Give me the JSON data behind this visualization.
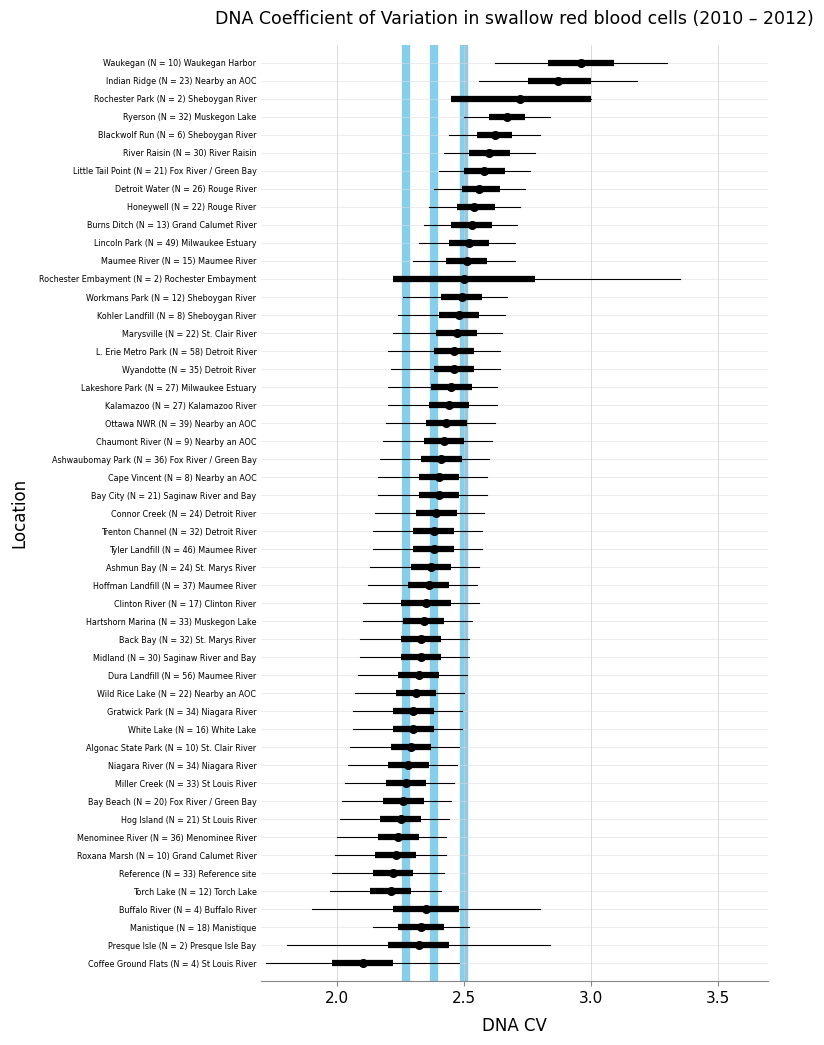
{
  "title": "DNA Coefficient of Variation in swallow red blood cells (2010 – 2012)",
  "xlabel": "DNA CV",
  "ylabel": "Location",
  "xlim": [
    1.7,
    3.7
  ],
  "xticks": [
    2.0,
    2.5,
    3.0,
    3.5
  ],
  "vlines": [
    2.27,
    2.38,
    2.5
  ],
  "vline_color": "#87CEEB",
  "vline_lw": 6,
  "bg_color": "#ffffff",
  "fig_bg": "#ffffff",
  "locations": [
    "Waukegan (N = 10) Waukegan Harbor",
    "Indian Ridge (N = 23) Nearby an AOC",
    "Rochester Park (N = 2) Sheboygan River",
    "Ryerson (N = 32) Muskegon Lake",
    "Blackwolf Run (N = 6) Sheboygan River",
    "River Raisin (N = 30) River Raisin",
    "Little Tail Point (N = 21) Fox River / Green Bay",
    "Detroit Water (N = 26) Rouge River",
    "Honeywell (N = 22) Rouge River",
    "Burns Ditch (N = 13) Grand Calumet River",
    "Lincoln Park (N = 49) Milwaukee Estuary",
    "Maumee River (N = 15) Maumee River",
    "Rochester Embayment (N = 2) Rochester Embayment",
    "Workmans Park (N = 12) Sheboygan River",
    "Kohler Landfill (N = 8) Sheboygan River",
    "Marysville (N = 22) St. Clair River",
    "L. Erie Metro Park (N = 58) Detroit River",
    "Wyandotte (N = 35) Detroit River",
    "Lakeshore Park (N = 27) Milwaukee Estuary",
    "Kalamazoo (N = 27) Kalamazoo River",
    "Ottawa NWR (N = 39) Nearby an AOC",
    "Chaumont River (N = 9) Nearby an AOC",
    "Ashwaubomay Park (N = 36) Fox River / Green Bay",
    "Cape Vincent (N = 8) Nearby an AOC",
    "Bay City (N = 21) Saginaw River and Bay",
    "Connor Creek (N = 24) Detroit River",
    "Trenton Channel (N = 32) Detroit River",
    "Tyler Landfill (N = 46) Maumee River",
    "Ashmun Bay (N = 24) St. Marys River",
    "Hoffman Landfill (N = 37) Maumee River",
    "Clinton River (N = 17) Clinton River",
    "Hartshorn Marina (N = 33) Muskegon Lake",
    "Back Bay (N = 32) St. Marys River",
    "Midland (N = 30) Saginaw River and Bay",
    "Dura Landfill (N = 56) Maumee River",
    "Wild Rice Lake (N = 22) Nearby an AOC",
    "Gratwick Park (N = 34) Niagara River",
    "White Lake (N = 16) White Lake",
    "Algonac State Park (N = 10) St. Clair River",
    "Niagara River (N = 34) Niagara River",
    "Miller Creek (N = 33) St Louis River",
    "Bay Beach (N = 20) Fox River / Green Bay",
    "Hog Island (N = 21) St Louis River",
    "Menominee River (N = 36) Menominee River",
    "Roxana Marsh (N = 10) Grand Calumet River",
    "Reference (N = 33) Reference site",
    "Torch Lake (N = 12) Torch Lake",
    "Buffalo River (N = 4) Buffalo River",
    "Manistique (N = 18) Manistique",
    "Presque Isle (N = 2) Presque Isle Bay",
    "Coffee Ground Flats (N = 4) St Louis River"
  ],
  "median": [
    2.96,
    2.87,
    2.72,
    2.67,
    2.62,
    2.6,
    2.58,
    2.56,
    2.54,
    2.53,
    2.52,
    2.51,
    2.5,
    2.49,
    2.48,
    2.47,
    2.46,
    2.46,
    2.45,
    2.44,
    2.43,
    2.42,
    2.41,
    2.4,
    2.4,
    2.39,
    2.38,
    2.38,
    2.37,
    2.36,
    2.35,
    2.34,
    2.33,
    2.33,
    2.32,
    2.31,
    2.3,
    2.3,
    2.29,
    2.28,
    2.27,
    2.26,
    2.25,
    2.24,
    2.23,
    2.22,
    2.21,
    2.35,
    2.33,
    2.32,
    2.1
  ],
  "q1": [
    2.83,
    2.75,
    2.45,
    2.6,
    2.55,
    2.52,
    2.5,
    2.49,
    2.47,
    2.45,
    2.44,
    2.43,
    2.22,
    2.41,
    2.4,
    2.39,
    2.38,
    2.38,
    2.37,
    2.36,
    2.35,
    2.34,
    2.33,
    2.32,
    2.32,
    2.31,
    2.3,
    2.3,
    2.29,
    2.28,
    2.25,
    2.26,
    2.25,
    2.25,
    2.24,
    2.23,
    2.22,
    2.22,
    2.21,
    2.2,
    2.19,
    2.18,
    2.17,
    2.16,
    2.15,
    2.14,
    2.13,
    2.22,
    2.24,
    2.2,
    1.98
  ],
  "q3": [
    3.09,
    3.0,
    3.0,
    2.74,
    2.69,
    2.68,
    2.66,
    2.64,
    2.62,
    2.61,
    2.6,
    2.59,
    2.78,
    2.57,
    2.56,
    2.55,
    2.54,
    2.54,
    2.53,
    2.52,
    2.51,
    2.5,
    2.49,
    2.48,
    2.48,
    2.47,
    2.46,
    2.46,
    2.45,
    2.44,
    2.45,
    2.42,
    2.41,
    2.41,
    2.4,
    2.39,
    2.38,
    2.38,
    2.37,
    2.36,
    2.35,
    2.34,
    2.33,
    2.32,
    2.31,
    2.3,
    2.29,
    2.48,
    2.42,
    2.44,
    2.22
  ],
  "wlo": [
    2.62,
    2.56,
    2.45,
    2.5,
    2.44,
    2.42,
    2.4,
    2.38,
    2.36,
    2.34,
    2.32,
    2.3,
    2.22,
    2.26,
    2.24,
    2.22,
    2.2,
    2.21,
    2.2,
    2.2,
    2.19,
    2.18,
    2.17,
    2.16,
    2.16,
    2.15,
    2.14,
    2.14,
    2.13,
    2.12,
    2.1,
    2.1,
    2.09,
    2.09,
    2.08,
    2.07,
    2.06,
    2.06,
    2.05,
    2.04,
    2.03,
    2.02,
    2.01,
    2.0,
    1.99,
    1.98,
    1.97,
    1.9,
    2.14,
    1.8,
    1.72
  ],
  "whi": [
    3.3,
    3.18,
    3.0,
    2.84,
    2.8,
    2.78,
    2.76,
    2.74,
    2.72,
    2.71,
    2.7,
    2.7,
    3.35,
    2.67,
    2.66,
    2.65,
    2.64,
    2.64,
    2.63,
    2.63,
    2.62,
    2.61,
    2.6,
    2.59,
    2.59,
    2.58,
    2.57,
    2.57,
    2.56,
    2.55,
    2.56,
    2.53,
    2.52,
    2.52,
    2.51,
    2.5,
    2.49,
    2.49,
    2.48,
    2.47,
    2.46,
    2.45,
    2.44,
    2.43,
    2.43,
    2.42,
    2.41,
    2.8,
    2.52,
    2.84,
    2.48
  ]
}
